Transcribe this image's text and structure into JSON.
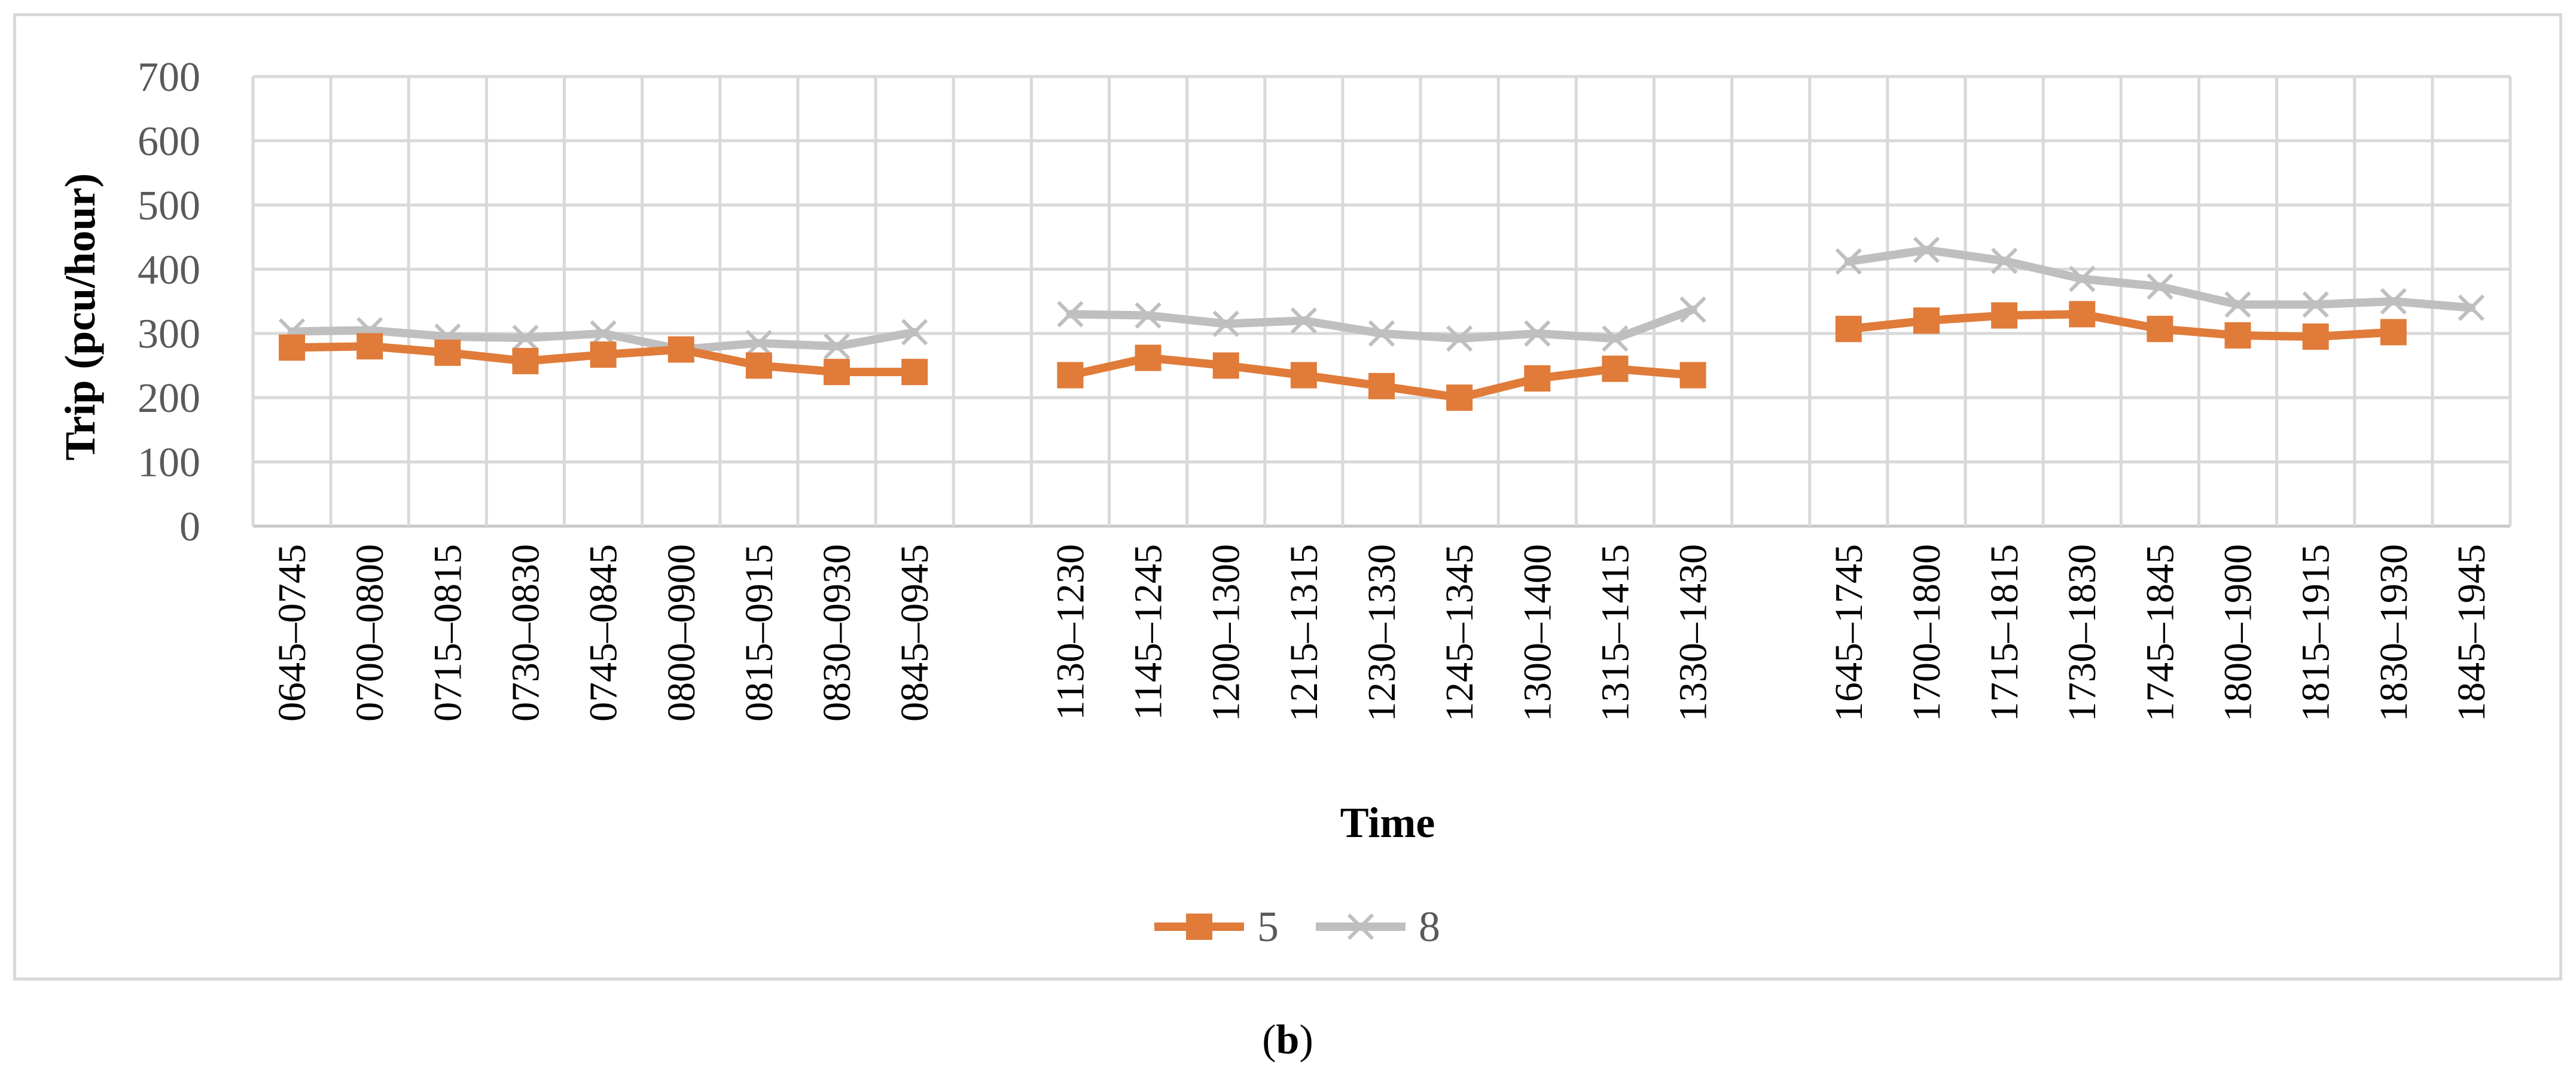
{
  "chart_data": {
    "type": "line",
    "ylabel": "Trip (pcu/hour)",
    "xlabel": "Time",
    "ylim": [
      0,
      700
    ],
    "yticks": [
      0,
      100,
      200,
      300,
      400,
      500,
      600,
      700
    ],
    "grid": true,
    "legend_position": "bottom",
    "categories": [
      "0645–0745",
      "0700–0800",
      "0715–0815",
      "0730–0830",
      "0745–0845",
      "0800–0900",
      "0815–0915",
      "0830–0930",
      "0845–0945",
      "",
      "1130–1230",
      "1145–1245",
      "1200–1300",
      "1215–1315",
      "1230–1330",
      "1245–1345",
      "1300–1400",
      "1315–1415",
      "1330–1430",
      "",
      "1645–1745",
      "1700–1800",
      "1715–1815",
      "1730–1830",
      "1745–1845",
      "1800–1900",
      "1815–1915",
      "1830–1930",
      "1845–1945"
    ],
    "series": [
      {
        "name": "5",
        "color": "#e07b39",
        "marker": "square",
        "values": [
          278,
          280,
          270,
          257,
          267,
          275,
          250,
          240,
          240,
          null,
          235,
          262,
          250,
          235,
          218,
          200,
          230,
          245,
          235,
          null,
          307,
          320,
          328,
          330,
          307,
          297,
          295,
          302,
          null
        ]
      },
      {
        "name": "8",
        "color": "#bfbfbf",
        "marker": "x",
        "values": [
          303,
          305,
          295,
          293,
          300,
          275,
          285,
          280,
          302,
          null,
          330,
          328,
          315,
          320,
          300,
          292,
          300,
          292,
          337,
          null,
          412,
          430,
          413,
          385,
          373,
          345,
          345,
          350,
          340
        ]
      }
    ]
  },
  "caption": {
    "open": "(",
    "letter": "b",
    "close": ")"
  }
}
